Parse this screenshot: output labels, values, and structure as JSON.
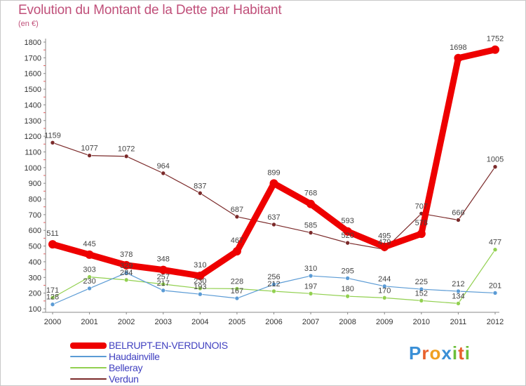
{
  "title": "Evolution du Montant de la Dette par Habitant",
  "subtitle": "(en €)",
  "logo": {
    "text": "Proxiti",
    "letters": [
      {
        "ch": "P",
        "color": "#3a8fd6"
      },
      {
        "ch": "r",
        "color": "#e8602c"
      },
      {
        "ch": "o",
        "color": "#f0a020"
      },
      {
        "ch": "x",
        "color": "#3a8fd6"
      },
      {
        "ch": "i",
        "color": "#6cbf3a"
      },
      {
        "ch": "t",
        "color": "#e8602c"
      },
      {
        "ch": "i",
        "color": "#6cbf3a"
      }
    ]
  },
  "chart_data": {
    "type": "line",
    "title": "Evolution du Montant de la Dette par Habitant",
    "subtitle": "(en €)",
    "xlabel": "",
    "ylabel": "",
    "x": [
      "2000",
      "2001",
      "2002",
      "2003",
      "2004",
      "2005",
      "2006",
      "2007",
      "2008",
      "2009",
      "2010",
      "2011",
      "2012"
    ],
    "ylim": [
      100,
      1800
    ],
    "yticks": [
      100,
      200,
      300,
      400,
      500,
      600,
      700,
      800,
      900,
      1000,
      1100,
      1200,
      1300,
      1400,
      1500,
      1600,
      1700,
      1800
    ],
    "grid": false,
    "legend_placement": "bottom-left",
    "series": [
      {
        "name": "BELRUPT-EN-VERDUNOIS",
        "color": "#ee0000",
        "width": 9,
        "marker": 6,
        "values": [
          511,
          445,
          378,
          348,
          310,
          467,
          899,
          768,
          593,
          495,
          578,
          1698,
          1752
        ],
        "labels": [
          "511",
          "445",
          "378",
          "348",
          "310",
          "467",
          "899",
          "768",
          "593",
          "495",
          "578",
          "1698",
          "1752"
        ]
      },
      {
        "name": "Haudainville",
        "color": "#5b9bd5",
        "width": 1.2,
        "marker": 3,
        "values": [
          128,
          230,
          329,
          217,
          193,
          167,
          256,
          310,
          295,
          244,
          225,
          212,
          201
        ],
        "labels": [
          "128",
          "230",
          "329",
          "217",
          "193",
          "167",
          "256",
          "310",
          "295",
          "244",
          "225",
          "212",
          "201"
        ]
      },
      {
        "name": "Belleray",
        "color": "#92d050",
        "width": 1.2,
        "marker": 3,
        "values": [
          171,
          303,
          284,
          257,
          230,
          228,
          212,
          197,
          180,
          170,
          152,
          134,
          477
        ],
        "labels": [
          "171",
          "303",
          "284",
          "257",
          "230",
          "228",
          "212",
          "197",
          "180",
          "170",
          "152",
          "134",
          "477"
        ]
      },
      {
        "name": "Verdun",
        "color": "#7b2a2a",
        "width": 1.2,
        "marker": 3,
        "values": [
          1159,
          1077,
          1072,
          964,
          837,
          687,
          637,
          585,
          520,
          479,
          707,
          666,
          1005
        ],
        "labels": [
          "1159",
          "1077",
          "1072",
          "964",
          "837",
          "687",
          "637",
          "585",
          "520",
          "479",
          "707",
          "666",
          "1005"
        ]
      }
    ]
  }
}
